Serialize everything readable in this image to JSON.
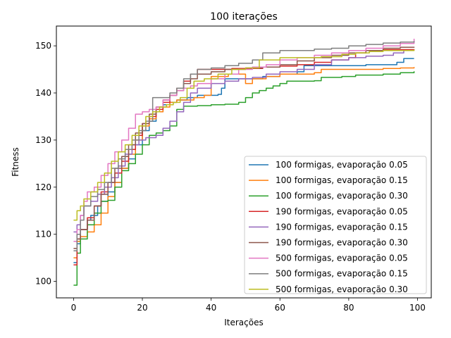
{
  "chart_data": {
    "type": "line",
    "title": "100 iterações",
    "xlabel": "Iterações",
    "ylabel": "Fitness",
    "xlim": [
      -5,
      104
    ],
    "ylim": [
      96.5,
      154.2
    ],
    "xticks": [
      0,
      20,
      40,
      60,
      80,
      100
    ],
    "yticks": [
      100,
      110,
      120,
      130,
      140,
      150
    ],
    "grid": false,
    "legend_position": "lower-right",
    "series": [
      {
        "name": "100 formigas, evaporação 0.05",
        "color": "#1f77b4",
        "points": [
          [
            0,
            104
          ],
          [
            1,
            108
          ],
          [
            2,
            111
          ],
          [
            4,
            113
          ],
          [
            5,
            114
          ],
          [
            7,
            116
          ],
          [
            8,
            117
          ],
          [
            10,
            119
          ],
          [
            12,
            121
          ],
          [
            14,
            124
          ],
          [
            16,
            126
          ],
          [
            18,
            129
          ],
          [
            20,
            132
          ],
          [
            22,
            134
          ],
          [
            24,
            136
          ],
          [
            26,
            137.5
          ],
          [
            28,
            138
          ],
          [
            30,
            138.5
          ],
          [
            33,
            139
          ],
          [
            36,
            139.5
          ],
          [
            42,
            139.7
          ],
          [
            43,
            141
          ],
          [
            44,
            143
          ],
          [
            50,
            143
          ],
          [
            55,
            143.5
          ],
          [
            60,
            144
          ],
          [
            65,
            144.5
          ],
          [
            67,
            145.8
          ],
          [
            75,
            145.8
          ],
          [
            80,
            145.8
          ],
          [
            85,
            146
          ],
          [
            90,
            146
          ],
          [
            94,
            146.5
          ],
          [
            96,
            147.3
          ],
          [
            99,
            147.3
          ]
        ]
      },
      {
        "name": "100 formigas, evaporação 0.15",
        "color": "#ff7f0e",
        "points": [
          [
            0,
            105
          ],
          [
            1,
            108.5
          ],
          [
            2,
            109.5
          ],
          [
            4,
            110.5
          ],
          [
            6,
            112
          ],
          [
            8,
            114.5
          ],
          [
            10,
            118
          ],
          [
            12,
            121
          ],
          [
            14,
            124
          ],
          [
            16,
            127
          ],
          [
            18,
            130
          ],
          [
            20,
            133
          ],
          [
            22,
            134.5
          ],
          [
            24,
            136
          ],
          [
            26,
            137
          ],
          [
            28,
            138
          ],
          [
            30,
            138.5
          ],
          [
            35,
            139
          ],
          [
            38,
            139.5
          ],
          [
            40,
            143.5
          ],
          [
            45,
            144
          ],
          [
            50,
            142
          ],
          [
            52,
            143
          ],
          [
            56,
            143.5
          ],
          [
            60,
            144
          ],
          [
            70,
            144.3
          ],
          [
            72,
            145
          ],
          [
            80,
            145
          ],
          [
            90,
            145.2
          ],
          [
            95,
            145.3
          ],
          [
            99,
            145.5
          ]
        ]
      },
      {
        "name": "100 formigas, evaporação 0.30",
        "color": "#2ca02c",
        "points": [
          [
            0,
            99.2
          ],
          [
            1,
            106
          ],
          [
            2,
            109
          ],
          [
            4,
            112
          ],
          [
            6,
            114.5
          ],
          [
            8,
            117
          ],
          [
            10,
            117.2
          ],
          [
            12,
            120
          ],
          [
            14,
            123.5
          ],
          [
            16,
            125
          ],
          [
            18,
            127
          ],
          [
            20,
            129
          ],
          [
            22,
            131
          ],
          [
            24,
            131.5
          ],
          [
            26,
            132
          ],
          [
            28,
            133
          ],
          [
            30,
            136.5
          ],
          [
            32,
            137.2
          ],
          [
            36,
            137.3
          ],
          [
            40,
            137.5
          ],
          [
            44,
            137.6
          ],
          [
            48,
            138
          ],
          [
            50,
            139
          ],
          [
            52,
            140
          ],
          [
            54,
            140.5
          ],
          [
            56,
            141
          ],
          [
            58,
            141.5
          ],
          [
            60,
            142
          ],
          [
            62,
            142.5
          ],
          [
            70,
            142.6
          ],
          [
            72,
            143.3
          ],
          [
            78,
            143.5
          ],
          [
            82,
            143.8
          ],
          [
            90,
            144
          ],
          [
            95,
            144.3
          ],
          [
            99,
            144.6
          ]
        ]
      },
      {
        "name": "190 formigas, evaporação 0.05",
        "color": "#d62728",
        "points": [
          [
            0,
            103.5
          ],
          [
            1,
            109
          ],
          [
            2,
            111
          ],
          [
            4,
            113.5
          ],
          [
            6,
            116
          ],
          [
            8,
            119
          ],
          [
            10,
            121
          ],
          [
            12,
            123
          ],
          [
            14,
            125.5
          ],
          [
            16,
            128
          ],
          [
            18,
            131
          ],
          [
            20,
            133.5
          ],
          [
            22,
            135
          ],
          [
            24,
            136.5
          ],
          [
            26,
            138
          ],
          [
            28,
            139.5
          ],
          [
            30,
            141
          ],
          [
            32,
            142.5
          ],
          [
            34,
            144
          ],
          [
            36,
            145
          ],
          [
            42,
            145
          ],
          [
            46,
            145.2
          ],
          [
            55,
            145.5
          ],
          [
            60,
            145.7
          ],
          [
            65,
            146
          ],
          [
            70,
            146.5
          ],
          [
            75,
            147
          ],
          [
            80,
            147.5
          ],
          [
            82,
            148.5
          ],
          [
            85,
            149
          ],
          [
            90,
            149.2
          ],
          [
            99,
            149.3
          ]
        ]
      },
      {
        "name": "190 formigas, evaporação 0.15",
        "color": "#9467bd",
        "points": [
          [
            0,
            110.5
          ],
          [
            1,
            112
          ],
          [
            2,
            114
          ],
          [
            3,
            116
          ],
          [
            5,
            117
          ],
          [
            7,
            118.5
          ],
          [
            9,
            120
          ],
          [
            11,
            122
          ],
          [
            13,
            124.5
          ],
          [
            15,
            127
          ],
          [
            17,
            129
          ],
          [
            19,
            130
          ],
          [
            21,
            130.5
          ],
          [
            24,
            131
          ],
          [
            26,
            132.5
          ],
          [
            28,
            134
          ],
          [
            30,
            136
          ],
          [
            32,
            138
          ],
          [
            34,
            140
          ],
          [
            36,
            141
          ],
          [
            40,
            142
          ],
          [
            44,
            142.5
          ],
          [
            48,
            143
          ],
          [
            52,
            143.3
          ],
          [
            56,
            144
          ],
          [
            60,
            144.5
          ],
          [
            65,
            145
          ],
          [
            70,
            146
          ],
          [
            75,
            147
          ],
          [
            80,
            147.5
          ],
          [
            85,
            147.8
          ],
          [
            90,
            148
          ],
          [
            93,
            148.5
          ],
          [
            96,
            149
          ],
          [
            99,
            149
          ]
        ]
      },
      {
        "name": "190 formigas, evaporação 0.30",
        "color": "#8c564b",
        "points": [
          [
            0,
            107
          ],
          [
            1,
            109
          ],
          [
            2,
            111
          ],
          [
            4,
            113
          ],
          [
            6,
            116
          ],
          [
            8,
            118.5
          ],
          [
            10,
            121
          ],
          [
            12,
            124
          ],
          [
            14,
            126.5
          ],
          [
            16,
            129
          ],
          [
            18,
            131.5
          ],
          [
            20,
            133.5
          ],
          [
            22,
            135.5
          ],
          [
            24,
            137
          ],
          [
            26,
            138.5
          ],
          [
            28,
            139.5
          ],
          [
            30,
            140.5
          ],
          [
            32,
            142
          ],
          [
            34,
            143
          ],
          [
            36,
            144
          ],
          [
            40,
            144.5
          ],
          [
            44,
            145
          ],
          [
            50,
            145.3
          ],
          [
            55,
            145.5
          ],
          [
            60,
            146
          ],
          [
            65,
            146.8
          ],
          [
            70,
            147.5
          ],
          [
            75,
            148
          ],
          [
            80,
            148.5
          ],
          [
            85,
            149
          ],
          [
            90,
            149.5
          ],
          [
            95,
            149.7
          ],
          [
            99,
            149.8
          ]
        ]
      },
      {
        "name": "500 formigas, evaporação 0.05",
        "color": "#e377c2",
        "points": [
          [
            0,
            108.5
          ],
          [
            1,
            111
          ],
          [
            2,
            114
          ],
          [
            3,
            117
          ],
          [
            4,
            119
          ],
          [
            6,
            120
          ],
          [
            8,
            122.5
          ],
          [
            10,
            125
          ],
          [
            12,
            127.5
          ],
          [
            14,
            130
          ],
          [
            16,
            132.5
          ],
          [
            18,
            135.5
          ],
          [
            20,
            136
          ],
          [
            22,
            136.5
          ],
          [
            24,
            137
          ],
          [
            26,
            138.5
          ],
          [
            28,
            139.5
          ],
          [
            30,
            140.5
          ],
          [
            32,
            141
          ],
          [
            34,
            141.5
          ],
          [
            36,
            142
          ],
          [
            40,
            143
          ],
          [
            44,
            144
          ],
          [
            48,
            145
          ],
          [
            52,
            145.5
          ],
          [
            56,
            146
          ],
          [
            60,
            147
          ],
          [
            65,
            147.5
          ],
          [
            70,
            148
          ],
          [
            75,
            148.5
          ],
          [
            80,
            149
          ],
          [
            85,
            149.5
          ],
          [
            90,
            150
          ],
          [
            95,
            150.5
          ],
          [
            99,
            151.5
          ]
        ]
      },
      {
        "name": "500 formigas, evaporação 0.15",
        "color": "#7f7f7f",
        "points": [
          [
            0,
            106.5
          ],
          [
            1,
            110
          ],
          [
            2,
            113
          ],
          [
            3,
            116
          ],
          [
            5,
            118
          ],
          [
            7,
            119.5
          ],
          [
            9,
            121
          ],
          [
            11,
            124
          ],
          [
            13,
            126
          ],
          [
            15,
            128
          ],
          [
            17,
            130
          ],
          [
            19,
            132
          ],
          [
            21,
            134
          ],
          [
            23,
            139
          ],
          [
            26,
            139
          ],
          [
            28,
            140
          ],
          [
            30,
            141
          ],
          [
            32,
            143
          ],
          [
            34,
            144
          ],
          [
            36,
            145
          ],
          [
            40,
            145.3
          ],
          [
            44,
            145.8
          ],
          [
            48,
            146.3
          ],
          [
            52,
            147
          ],
          [
            55,
            148.5
          ],
          [
            60,
            149
          ],
          [
            65,
            149
          ],
          [
            70,
            149.3
          ],
          [
            75,
            149.5
          ],
          [
            80,
            150
          ],
          [
            85,
            150.3
          ],
          [
            90,
            150.6
          ],
          [
            95,
            150.8
          ],
          [
            99,
            151
          ]
        ]
      },
      {
        "name": "500 formigas, evaporação 0.30",
        "color": "#bcbd22",
        "points": [
          [
            0,
            113
          ],
          [
            1,
            115
          ],
          [
            2,
            116
          ],
          [
            3,
            117.5
          ],
          [
            5,
            119
          ],
          [
            7,
            121
          ],
          [
            9,
            123
          ],
          [
            11,
            125.5
          ],
          [
            13,
            127.5
          ],
          [
            15,
            129
          ],
          [
            17,
            131
          ],
          [
            19,
            133
          ],
          [
            21,
            135
          ],
          [
            23,
            136
          ],
          [
            25,
            137
          ],
          [
            27,
            137.5
          ],
          [
            29,
            138
          ],
          [
            31,
            139
          ],
          [
            33,
            141
          ],
          [
            35,
            142.5
          ],
          [
            38,
            143
          ],
          [
            42,
            144
          ],
          [
            46,
            145
          ],
          [
            50,
            145.3
          ],
          [
            54,
            147
          ],
          [
            60,
            147.5
          ],
          [
            66,
            147.5
          ],
          [
            72,
            147.7
          ],
          [
            78,
            148.2
          ],
          [
            82,
            148.5
          ],
          [
            86,
            148.8
          ],
          [
            90,
            149
          ],
          [
            95,
            149
          ],
          [
            99,
            149.2
          ]
        ]
      }
    ]
  }
}
